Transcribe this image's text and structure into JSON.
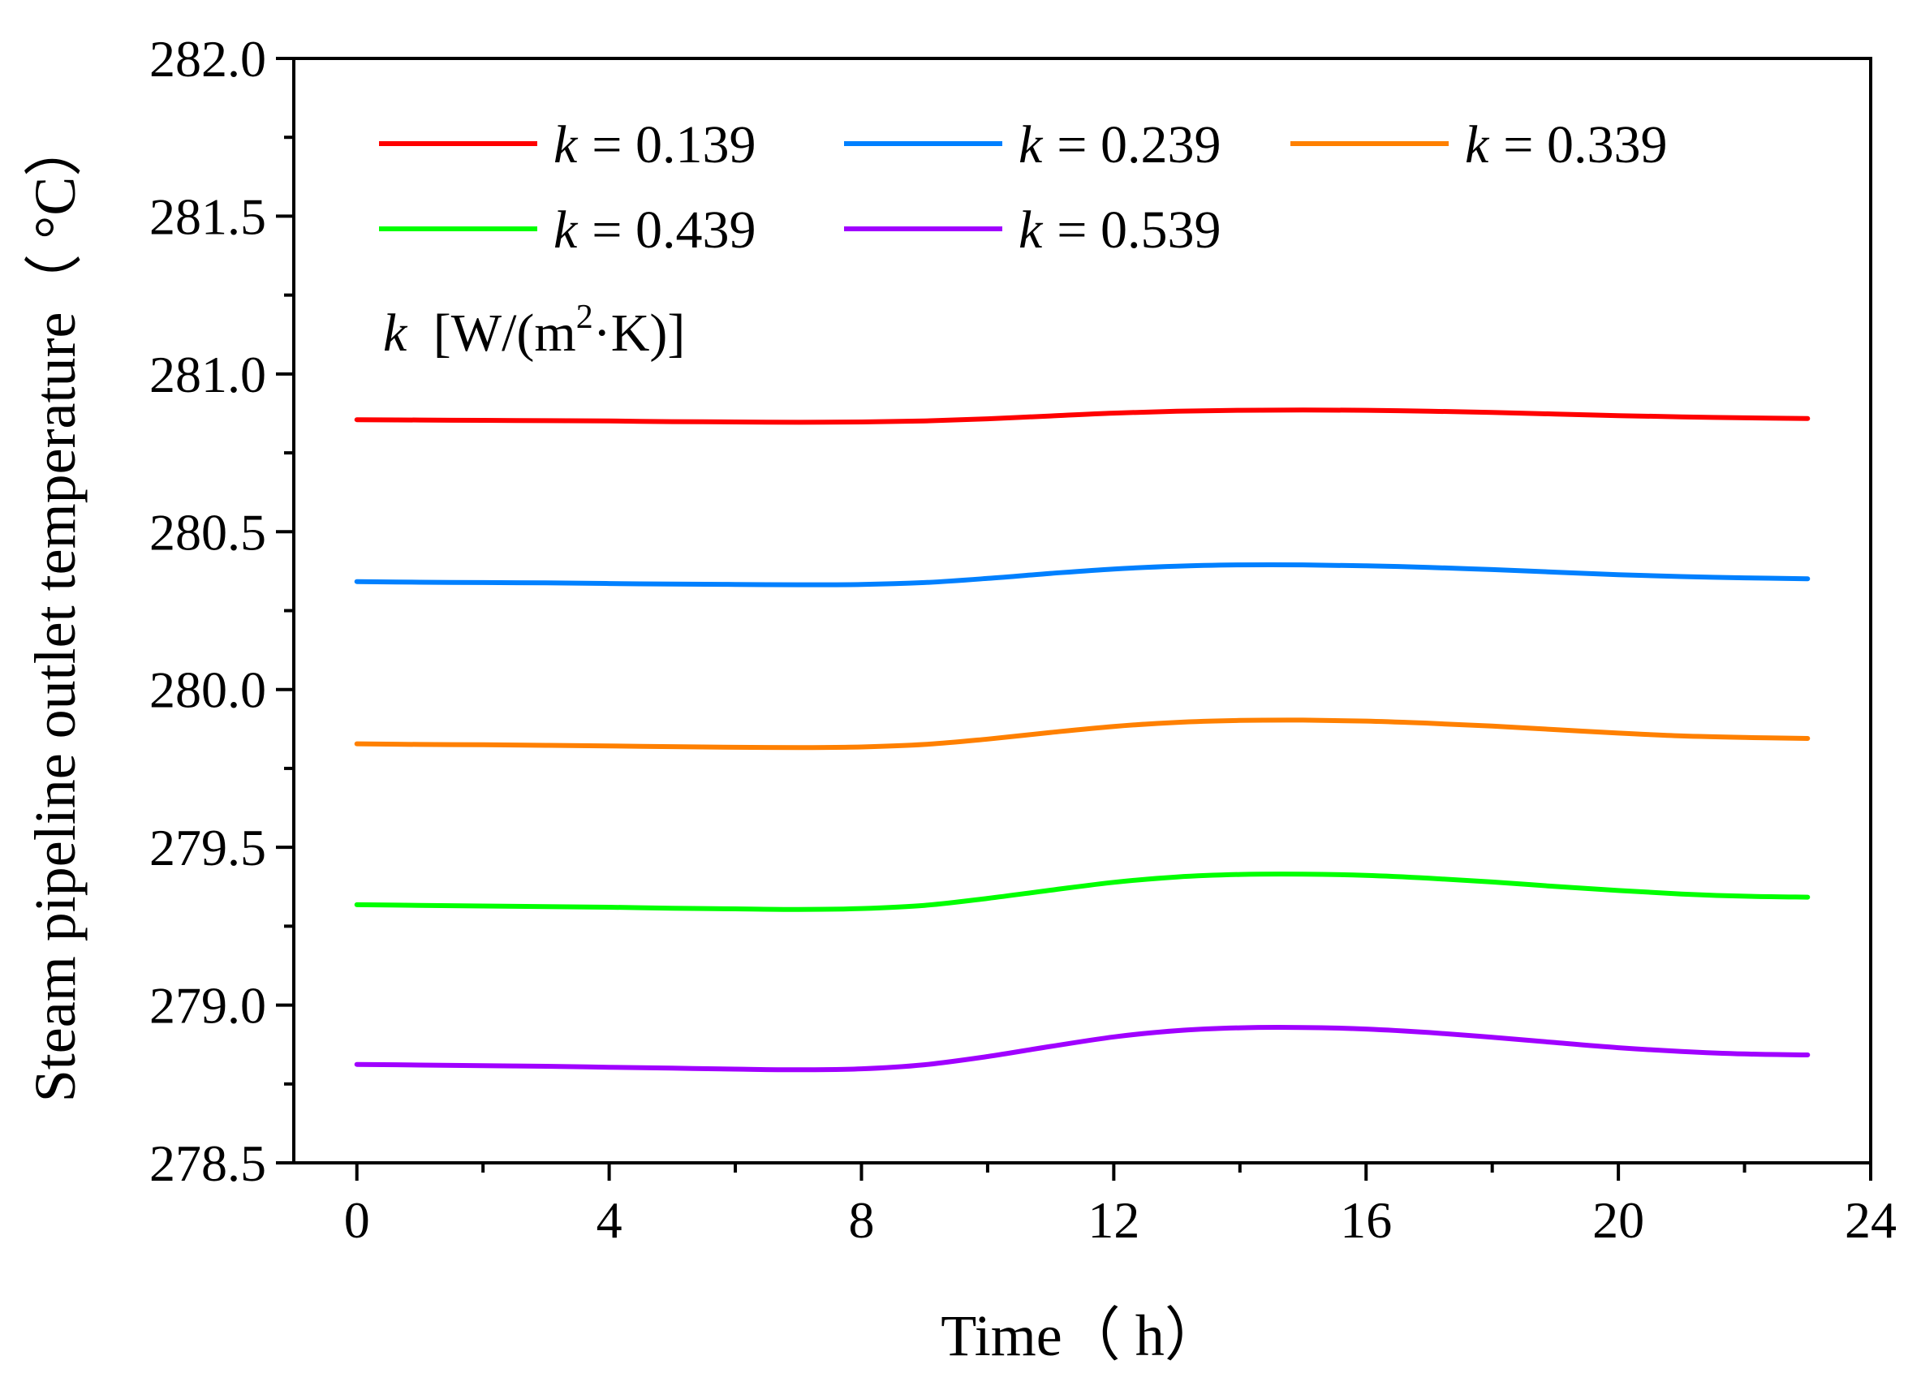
{
  "chart_data": {
    "type": "line",
    "title": "",
    "xlabel": "Time（ h）",
    "ylabel": "Steam pipeline outlet temperature（ °C）",
    "xlim": [
      -1,
      24
    ],
    "ylim": [
      278.5,
      282.0
    ],
    "xticks": [
      0,
      4,
      8,
      12,
      16,
      20,
      24
    ],
    "xtick_labels": [
      "0",
      "4",
      "8",
      "12",
      "16",
      "20",
      "24"
    ],
    "yticks": [
      278.5,
      279.0,
      279.5,
      280.0,
      280.5,
      281.0,
      281.5,
      282.0
    ],
    "ytick_labels": [
      "278.5",
      "279.0",
      "279.5",
      "280.0",
      "280.5",
      "281.0",
      "281.5",
      "282.0"
    ],
    "grid": false,
    "legend_position": "top-left",
    "legend_note": {
      "symbol": "k",
      "units": "[W/(m",
      "sup": "2",
      "units_tail": "·K)]"
    },
    "x": [
      0,
      1,
      2,
      3,
      4,
      5,
      6,
      7,
      8,
      9,
      10,
      11,
      12,
      13,
      14,
      15,
      16,
      17,
      18,
      19,
      20,
      21,
      22,
      23
    ],
    "series": [
      {
        "name": "k = 0.139",
        "symbol": "k",
        "value_text": "= 0.139",
        "color": "#ff0000",
        "values": [
          280.855,
          280.854,
          280.853,
          280.852,
          280.851,
          280.849,
          280.848,
          280.847,
          280.848,
          280.851,
          280.858,
          280.867,
          280.876,
          280.882,
          280.885,
          280.886,
          280.885,
          280.882,
          280.878,
          280.873,
          280.868,
          280.864,
          280.861,
          280.859
        ]
      },
      {
        "name": "k = 0.239",
        "symbol": "k",
        "value_text": "= 0.239",
        "color": "#0080ff",
        "values": [
          280.342,
          280.34,
          280.339,
          280.338,
          280.336,
          280.334,
          280.333,
          280.332,
          280.333,
          280.339,
          280.352,
          280.368,
          280.382,
          280.391,
          280.395,
          280.395,
          280.392,
          280.387,
          280.38,
          280.372,
          280.364,
          280.358,
          280.354,
          280.351
        ]
      },
      {
        "name": "k = 0.339",
        "symbol": "k",
        "value_text": "= 0.339",
        "color": "#ff8000",
        "values": [
          279.828,
          279.826,
          279.825,
          279.823,
          279.821,
          279.819,
          279.817,
          279.816,
          279.818,
          279.826,
          279.843,
          279.864,
          279.883,
          279.896,
          279.902,
          279.903,
          279.9,
          279.893,
          279.884,
          279.873,
          279.862,
          279.853,
          279.848,
          279.845
        ]
      },
      {
        "name": "k = 0.439",
        "symbol": "k",
        "value_text": "= 0.439",
        "color": "#00ff00",
        "values": [
          279.318,
          279.316,
          279.314,
          279.312,
          279.31,
          279.307,
          279.305,
          279.303,
          279.306,
          279.316,
          279.338,
          279.364,
          279.389,
          279.406,
          279.414,
          279.415,
          279.411,
          279.402,
          279.39,
          279.376,
          279.363,
          279.352,
          279.345,
          279.342
        ]
      },
      {
        "name": "k = 0.539",
        "symbol": "k",
        "value_text": "= 0.539",
        "color": "#a000ff",
        "values": [
          278.812,
          278.81,
          278.808,
          278.806,
          278.803,
          278.8,
          278.797,
          278.795,
          278.798,
          278.811,
          278.837,
          278.869,
          278.899,
          278.919,
          278.928,
          278.929,
          278.924,
          278.913,
          278.898,
          278.881,
          278.865,
          278.853,
          278.845,
          278.842
        ]
      }
    ]
  }
}
